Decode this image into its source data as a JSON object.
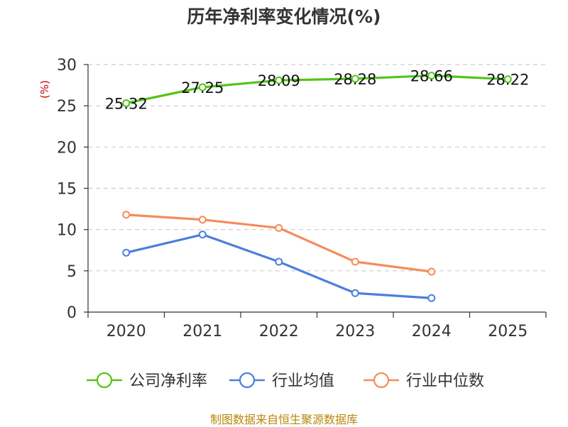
{
  "chart_data": {
    "type": "line",
    "title": "历年净利率变化情况(%)",
    "ylabel": "(%)",
    "xlabel": "",
    "ylim": [
      0,
      30
    ],
    "yticks": [
      0,
      5,
      10,
      15,
      20,
      25,
      30
    ],
    "categories": [
      "2020",
      "2021",
      "2022",
      "2023",
      "2024",
      "2025"
    ],
    "series": [
      {
        "name": "公司净利率",
        "color": "#52c41a",
        "values": [
          25.32,
          27.25,
          28.09,
          28.28,
          28.66,
          28.22
        ],
        "labels": [
          "25.32",
          "27.25",
          "28.09",
          "28.28",
          "28.66",
          "28.22"
        ]
      },
      {
        "name": "行业均值",
        "color": "#4a7fdc",
        "values": [
          7.2,
          9.4,
          6.1,
          2.3,
          1.7,
          null
        ]
      },
      {
        "name": "行业中位数",
        "color": "#f58b5b",
        "values": [
          11.8,
          11.2,
          10.2,
          6.1,
          4.9,
          null
        ]
      }
    ],
    "legend_position": "bottom",
    "grid": true
  },
  "footer": "制图数据来自恒生聚源数据库"
}
